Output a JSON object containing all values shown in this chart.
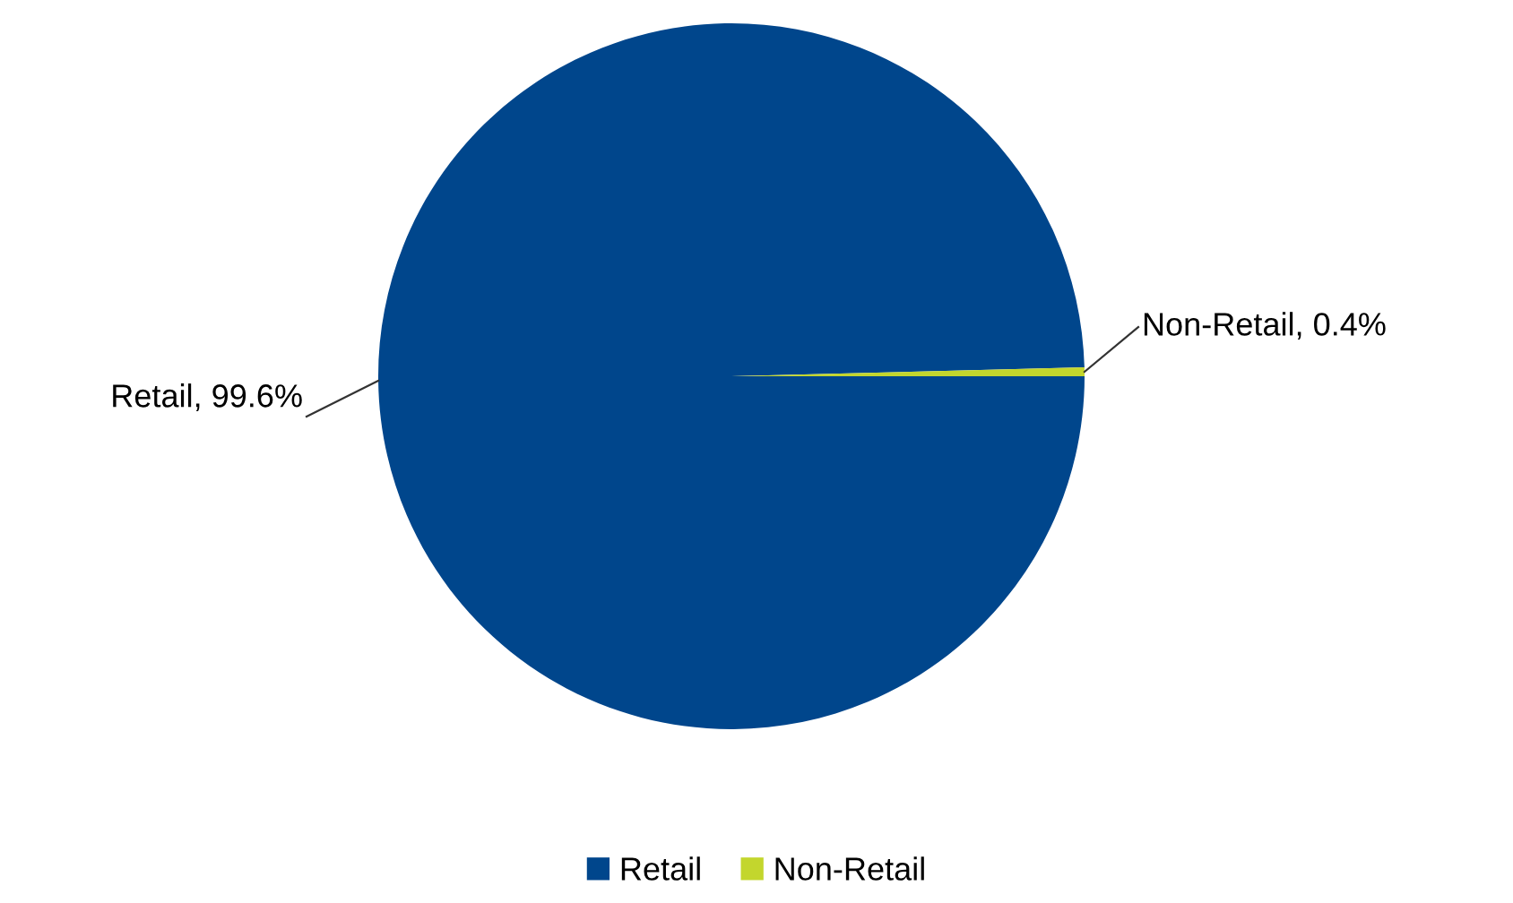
{
  "chart_data": {
    "type": "pie",
    "categories": [
      "Retail",
      "Non-Retail"
    ],
    "values": [
      99.6,
      0.4
    ],
    "colors": [
      "#00468c",
      "#c3d62d"
    ],
    "value_labels": [
      "Retail, 99.6%",
      "Non-Retail, 0.4%"
    ],
    "legend": "bottom"
  }
}
